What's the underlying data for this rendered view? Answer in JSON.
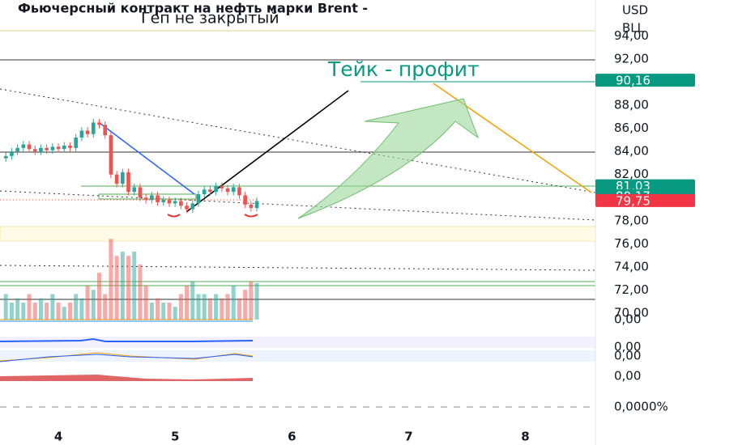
{
  "chart_data": {
    "type": "candlestick",
    "title": "Фьючерсный контракт на нефть марки Brent -",
    "annotations": [
      "Геп не закрытый",
      "Тейк - профит"
    ],
    "currency": "USD",
    "unit": "BLL",
    "up_color": "#26a69a",
    "down_color": "#ef5350",
    "xlim": [
      3.5,
      8.6
    ],
    "xticks": [
      4,
      5,
      6,
      7,
      8
    ],
    "ylim": [
      69.8,
      97.1
    ],
    "yticks": [
      {
        "value": 70,
        "label": "70,00"
      },
      {
        "value": 72,
        "label": "72,00"
      },
      {
        "value": 74,
        "label": "74,00"
      },
      {
        "value": 76,
        "label": "76,00"
      },
      {
        "value": 78,
        "label": "78,00"
      },
      {
        "value": 80,
        "label": "80,00"
      },
      {
        "value": 82,
        "label": "82,00"
      },
      {
        "value": 84,
        "label": "84,00"
      },
      {
        "value": 86,
        "label": "86,00"
      },
      {
        "value": 88,
        "label": "88,00"
      },
      {
        "value": 90,
        "label": "90,00"
      },
      {
        "value": 92,
        "label": "92,00"
      },
      {
        "value": 94,
        "label": "94,00"
      }
    ],
    "x": [
      3.55,
      3.6,
      3.65,
      3.7,
      3.75,
      3.8,
      3.85,
      3.9,
      3.95,
      4.0,
      4.05,
      4.1,
      4.15,
      4.2,
      4.25,
      4.3,
      4.35,
      4.4,
      4.45,
      4.5,
      4.55,
      4.6,
      4.65,
      4.7,
      4.75,
      4.8,
      4.85,
      4.9,
      4.95,
      5.0,
      5.05,
      5.1,
      5.15,
      5.2,
      5.25,
      5.3,
      5.35,
      5.4,
      5.45,
      5.5,
      5.55,
      5.6,
      5.65,
      5.7
    ],
    "open": [
      83.4,
      83.6,
      84.0,
      84.3,
      84.6,
      84.2,
      84.0,
      84.3,
      84.1,
      84.4,
      84.2,
      84.5,
      84.3,
      85.2,
      85.8,
      85.5,
      86.5,
      86.3,
      85.4,
      82.0,
      81.2,
      82.2,
      80.5,
      80.9,
      80.0,
      79.8,
      80.2,
      79.6,
      79.8,
      79.5,
      79.7,
      79.3,
      79.0,
      79.5,
      80.3,
      80.7,
      80.5,
      81.0,
      80.8,
      80.5,
      80.9,
      80.2,
      79.4,
      79.1
    ],
    "high": [
      83.9,
      84.3,
      84.6,
      84.9,
      84.9,
      84.5,
      84.6,
      84.6,
      84.7,
      84.7,
      84.8,
      84.8,
      85.5,
      86.1,
      86.1,
      86.8,
      86.8,
      86.6,
      85.7,
      82.3,
      82.5,
      82.5,
      81.2,
      81.2,
      80.3,
      80.5,
      80.5,
      80.1,
      80.1,
      80.0,
      80.0,
      79.6,
      79.8,
      80.6,
      81.0,
      81.0,
      81.3,
      81.3,
      81.1,
      81.2,
      81.2,
      80.5,
      79.7,
      80.0
    ],
    "low": [
      83.1,
      83.3,
      83.7,
      84.0,
      83.9,
      83.7,
      83.7,
      83.8,
      83.8,
      83.9,
      83.9,
      84.0,
      84.0,
      84.9,
      85.2,
      85.2,
      86.0,
      85.1,
      81.7,
      80.9,
      80.9,
      80.2,
      80.2,
      79.7,
      79.5,
      79.5,
      79.3,
      79.3,
      79.2,
      79.2,
      79.0,
      78.7,
      78.7,
      79.2,
      80.0,
      80.2,
      80.2,
      80.5,
      80.2,
      80.2,
      79.9,
      79.1,
      78.8,
      78.8
    ],
    "close": [
      83.6,
      84.0,
      84.3,
      84.6,
      84.2,
      84.0,
      84.3,
      84.1,
      84.4,
      84.2,
      84.5,
      84.3,
      85.2,
      85.8,
      85.5,
      86.5,
      86.3,
      85.4,
      82.0,
      81.2,
      82.2,
      80.5,
      80.9,
      80.0,
      79.8,
      80.2,
      79.6,
      79.8,
      79.5,
      79.7,
      79.3,
      79.0,
      79.5,
      80.3,
      80.7,
      80.5,
      81.0,
      80.8,
      80.5,
      80.9,
      80.2,
      79.4,
      79.1,
      79.7
    ],
    "volume": [
      3,
      2,
      2.5,
      2,
      3,
      2,
      2.5,
      2,
      3,
      2,
      1.5,
      2,
      3,
      2.5,
      4,
      3.5,
      5.5,
      3,
      9.5,
      7.5,
      8,
      7.5,
      8,
      6.5,
      4,
      2,
      2.5,
      2,
      2,
      1.5,
      3,
      4,
      4.5,
      3,
      3,
      2.5,
      3,
      2.5,
      3,
      4,
      2.5,
      3.5,
      4.5,
      4.3
    ],
    "price_markers": {
      "values": [
        90.16,
        81.03,
        80.17,
        79.75
      ],
      "value_labels": [
        "90,16",
        "81,03",
        "80,17",
        "79,75"
      ],
      "colors": [
        "#089981",
        "#089981",
        "#089981",
        "#f23645"
      ]
    },
    "indicator_labels": [
      "0,00",
      "0,00",
      "0,00",
      "0,00",
      "0,0000%"
    ]
  }
}
